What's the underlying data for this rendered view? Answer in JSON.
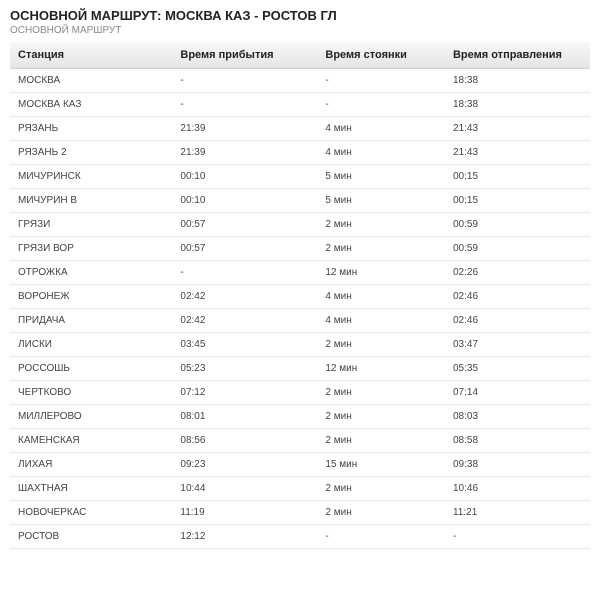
{
  "header": {
    "title": "ОСНОВНОЙ МАРШРУТ: МОСКВА КАЗ - РОСТОВ ГЛ",
    "subtitle": "ОСНОВНОЙ МАРШРУТ"
  },
  "table": {
    "columns": [
      "Станция",
      "Время прибытия",
      "Время стоянки",
      "Время отправления"
    ],
    "rows": [
      [
        "МОСКВА",
        "-",
        "-",
        "18:38"
      ],
      [
        "МОСКВА КАЗ",
        "-",
        "-",
        "18:38"
      ],
      [
        "РЯЗАНЬ",
        "21:39",
        "4 мин",
        "21:43"
      ],
      [
        "РЯЗАНЬ 2",
        "21:39",
        "4 мин",
        "21:43"
      ],
      [
        "МИЧУРИНСК",
        "00:10",
        "5 мин",
        "00:15"
      ],
      [
        "МИЧУРИН В",
        "00:10",
        "5 мин",
        "00:15"
      ],
      [
        "ГРЯЗИ",
        "00:57",
        "2 мин",
        "00:59"
      ],
      [
        "ГРЯЗИ ВОР",
        "00:57",
        "2 мин",
        "00:59"
      ],
      [
        "ОТРОЖКА",
        "-",
        "12 мин",
        "02:26"
      ],
      [
        "ВОРОНЕЖ",
        "02:42",
        "4 мин",
        "02:46"
      ],
      [
        "ПРИДАЧА",
        "02:42",
        "4 мин",
        "02:46"
      ],
      [
        "ЛИСКИ",
        "03:45",
        "2 мин",
        "03:47"
      ],
      [
        "РОССОШЬ",
        "05:23",
        "12 мин",
        "05:35"
      ],
      [
        "ЧЕРТКОВО",
        "07:12",
        "2 мин",
        "07:14"
      ],
      [
        "МИЛЛЕРОВО",
        "08:01",
        "2 мин",
        "08:03"
      ],
      [
        "КАМЕНСКАЯ",
        "08:56",
        "2 мин",
        "08:58"
      ],
      [
        "ЛИХАЯ",
        "09:23",
        "15 мин",
        "09:38"
      ],
      [
        "ШАХТНАЯ",
        "10:44",
        "2 мин",
        "10:46"
      ],
      [
        "НОВОЧЕРКАС",
        "11:19",
        "2 мин",
        "11:21"
      ],
      [
        "РОСТОВ",
        "12:12",
        "-",
        "-"
      ]
    ]
  },
  "style": {
    "header_gradient_top": "#f8f8f8",
    "header_gradient_bottom": "#e4e4e4",
    "row_border": "#e6e6e6",
    "text_color": "#444444",
    "title_color": "#222222",
    "subtitle_color": "#888888",
    "font_size_body": 10,
    "font_size_header": 11,
    "font_size_title": 13
  }
}
